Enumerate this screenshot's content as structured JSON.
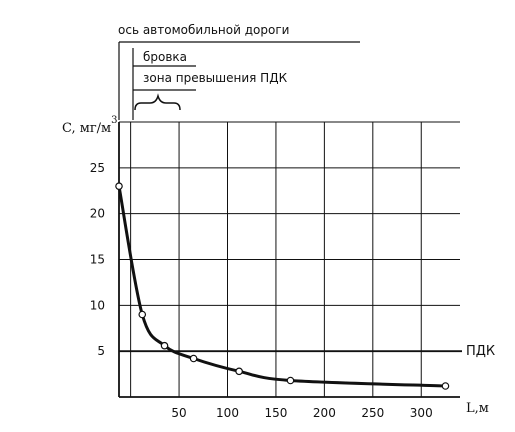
{
  "chart_data": {
    "type": "line",
    "annotations": {
      "road_axis": "ось автомобильной дороги",
      "edge": "бровка",
      "zone": "зона превышения ПДК",
      "pdk_label": "ПДК"
    },
    "ylabel": "C, мг/м",
    "ylabel_sup": "3",
    "xlabel": "L,м",
    "x_ticks": [
      50,
      100,
      150,
      200,
      250,
      300
    ],
    "y_ticks": [
      5,
      10,
      15,
      20,
      25
    ],
    "xlim": [
      -12,
      340
    ],
    "ylim": [
      0,
      30
    ],
    "grid": true,
    "pdk_value": 5,
    "series": [
      {
        "x": [
          -12,
          12,
          35,
          65,
          112,
          165,
          325
        ],
        "y": [
          23,
          9,
          5.6,
          4.2,
          2.8,
          1.8,
          1.2
        ]
      }
    ]
  }
}
